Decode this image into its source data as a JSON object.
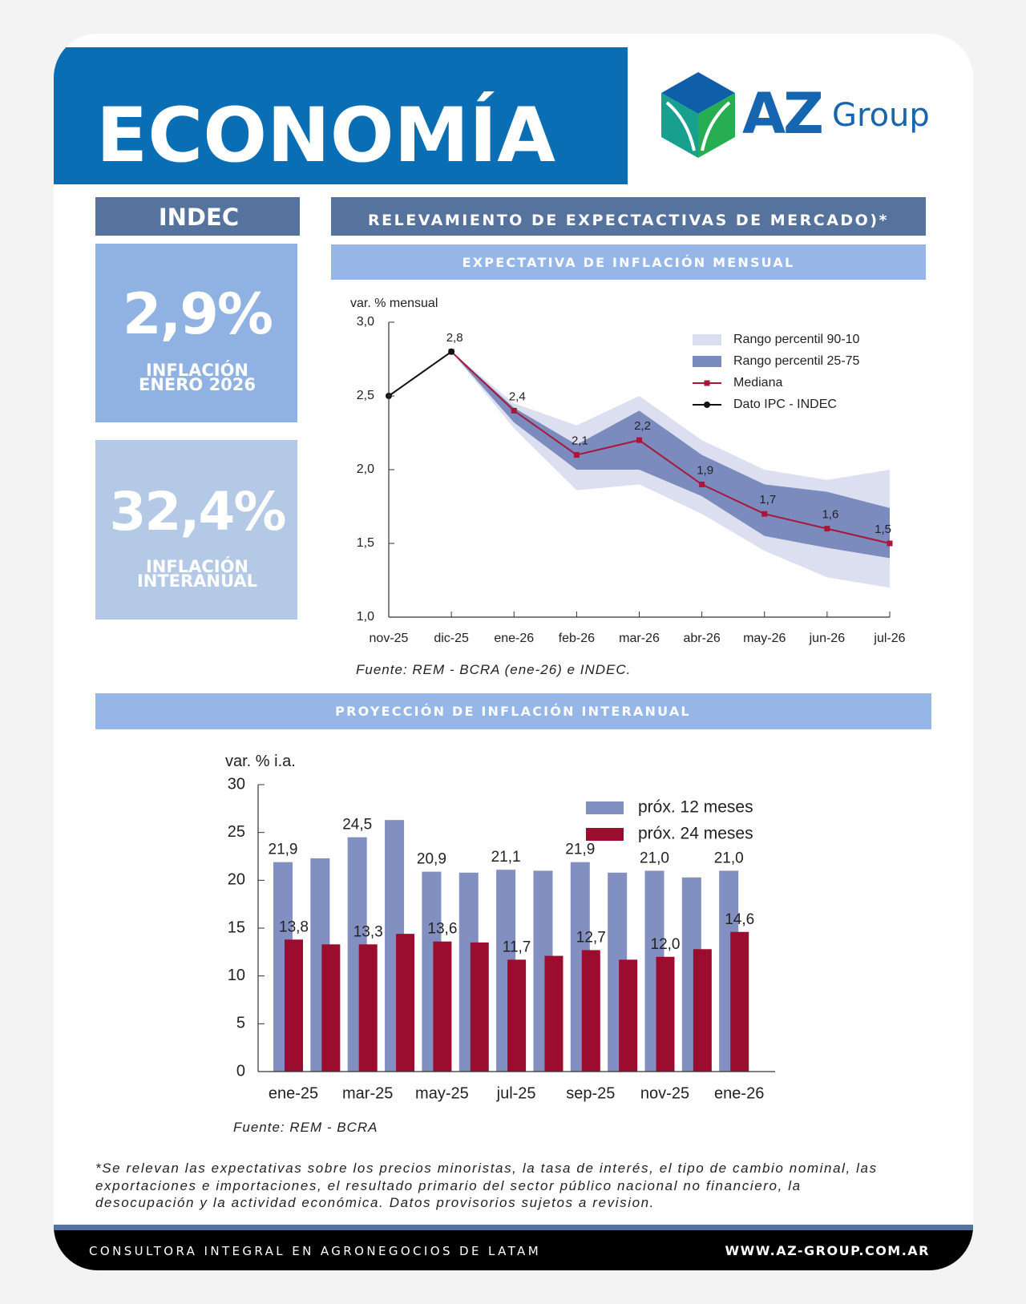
{
  "header": {
    "title": "ECONOMÍA",
    "logo": {
      "brand": "AZ",
      "suffix": "Group"
    }
  },
  "indec": {
    "title": "INDEC",
    "kpis": [
      {
        "value": "2,9%",
        "label": [
          "INFLACIÓN",
          "ENERO 2026"
        ]
      },
      {
        "value": "32,4%",
        "label": [
          "INFLACIÓN",
          "INTERANUAL"
        ]
      }
    ]
  },
  "section": "RELEVAMIENTO DE EXPECTACTIVAS DE MERCADO)*",
  "chart_data": [
    {
      "type": "line",
      "title": "EXPECTATIVA DE INFLACIÓN MENSUAL",
      "y_label": "var. % mensual",
      "source": "Fuente: REM - BCRA (ene-26) e INDEC.",
      "categories": [
        "nov-25",
        "dic-25",
        "ene-26",
        "feb-26",
        "mar-26",
        "abr-26",
        "may-26",
        "jun-26",
        "jul-26"
      ],
      "ylim": [
        1,
        3
      ],
      "yticks": [
        {
          "value": 1,
          "label": "1,0"
        },
        {
          "value": 1.5,
          "label": "1,5"
        },
        {
          "value": 2,
          "label": "2,0"
        },
        {
          "value": 2.5,
          "label": "2,5"
        },
        {
          "value": 3,
          "label": "3,0"
        }
      ],
      "legend": "upper right",
      "series": [
        {
          "name": "Rango percentil 90-10",
          "type": "band",
          "color": "#dcdfef",
          "low": [
            null,
            2.8,
            2.28,
            1.86,
            1.9,
            1.7,
            1.45,
            1.27,
            1.2
          ],
          "high": [
            null,
            2.8,
            2.45,
            2.3,
            2.5,
            2.2,
            2.0,
            1.93,
            2.0
          ]
        },
        {
          "name": "Rango percentil 25-75",
          "type": "band",
          "color": "#7b8bbd",
          "low": [
            null,
            2.8,
            2.32,
            2.0,
            2.0,
            1.82,
            1.55,
            1.47,
            1.4
          ],
          "high": [
            null,
            2.8,
            2.42,
            2.17,
            2.4,
            2.1,
            1.9,
            1.85,
            1.74
          ]
        },
        {
          "name": "Mediana",
          "color": "#a8163a",
          "marker": "square",
          "values": [
            null,
            2.8,
            2.4,
            2.1,
            2.2,
            1.9,
            1.7,
            1.6,
            1.5
          ],
          "value_labels": [
            null,
            null,
            "2,4",
            "2,1",
            "2,2",
            "1,9",
            "1,7",
            "1,6",
            "1,5"
          ]
        },
        {
          "name": "Dato IPC - INDEC",
          "color": "#111111",
          "marker": "circle",
          "values": [
            2.5,
            2.8,
            null,
            null,
            null,
            null,
            null,
            null,
            null
          ],
          "value_labels": [
            null,
            "2,8",
            null,
            null,
            null,
            null,
            null,
            null,
            null
          ]
        }
      ]
    },
    {
      "type": "bar",
      "title": "PROYECCIÓN DE INFLACIÓN INTERANUAL",
      "y_label": "var. % i.a.",
      "source": "Fuente: REM - BCRA",
      "categories": [
        "ene-25",
        null,
        "mar-25",
        null,
        "may-25",
        null,
        "jul-25",
        null,
        "sep-25",
        null,
        "nov-25",
        null,
        "ene-26"
      ],
      "ylim": [
        0,
        30
      ],
      "yticks": [
        0,
        5,
        10,
        15,
        20,
        25,
        30
      ],
      "legend": "upper right",
      "series": [
        {
          "name": "próx. 12 meses",
          "color": "#8190c0",
          "label_color": "#8d9bd0",
          "values": [
            21.9,
            22.3,
            24.5,
            26.3,
            20.9,
            20.8,
            21.1,
            21.0,
            21.9,
            20.8,
            21.0,
            20.3,
            21.0
          ],
          "value_labels": [
            "21,9",
            null,
            "24,5",
            null,
            "20,9",
            null,
            "21,1",
            null,
            "21,9",
            null,
            "21,0",
            null,
            "21,0"
          ]
        },
        {
          "name": "próx. 24 meses",
          "color": "#9b0c2e",
          "label_color": "#a8163a",
          "values": [
            13.8,
            13.3,
            13.3,
            14.4,
            13.6,
            13.5,
            11.7,
            12.1,
            12.7,
            11.7,
            12.0,
            12.8,
            14.6
          ],
          "value_labels": [
            "13,8",
            null,
            "13,3",
            null,
            "13,6",
            null,
            "11,7",
            null,
            "12,7",
            null,
            "12,0",
            null,
            "14,6"
          ]
        }
      ]
    }
  ],
  "note": "*Se relevan las expectativas sobre los precios minoristas, la tasa de interés, el tipo de cambio nominal, las exportaciones e importaciones, el resultado primario del sector público nacional no financiero, la desocupación y la actividad económica. Datos provisorios sujetos a revision.",
  "footer": {
    "tagline": "CONSULTORA INTEGRAL EN AGRONEGOCIOS DE LATAM",
    "website": "WWW.AZ-GROUP.COM.AR"
  }
}
